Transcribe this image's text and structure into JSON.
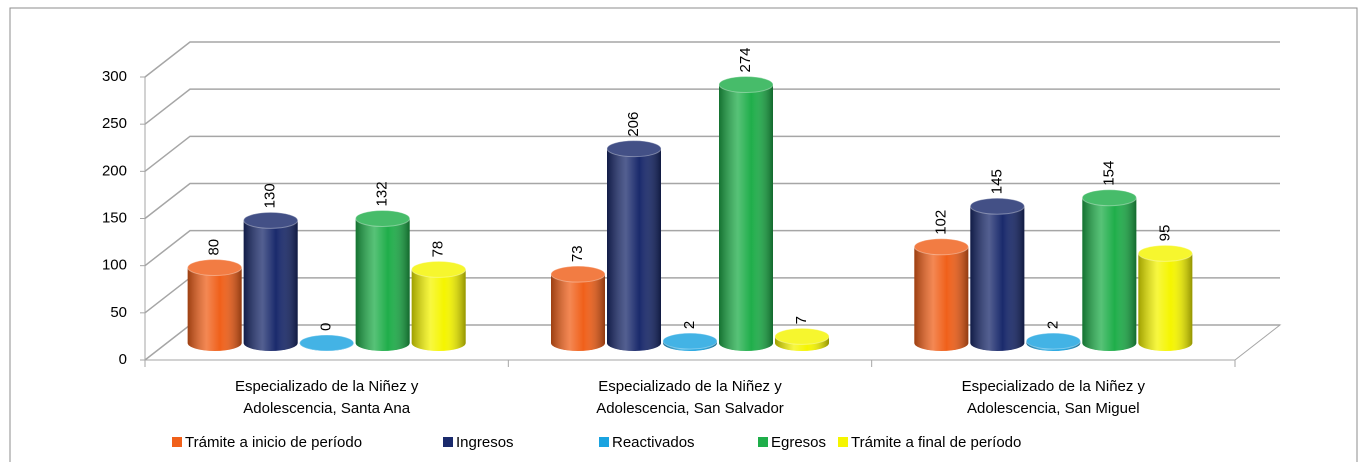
{
  "chart_data": {
    "type": "bar3d",
    "categories": [
      [
        "Especializado de la Niñez y",
        "Adolescencia, Santa Ana"
      ],
      [
        "Especializado de la Niñez y",
        "Adolescencia, San Salvador"
      ],
      [
        "Especializado de la Niñez y",
        "Adolescencia, San Miguel"
      ]
    ],
    "series": [
      {
        "name": "Trámite a inicio de período",
        "color": "#f0601a",
        "values": [
          80,
          73,
          102
        ]
      },
      {
        "name": "Ingresos",
        "color": "#1a2a6c",
        "values": [
          130,
          206,
          145
        ]
      },
      {
        "name": "Reactivados",
        "color": "#1aa3e0",
        "values": [
          0,
          2,
          2
        ]
      },
      {
        "name": "Egresos",
        "color": "#1fae4a",
        "values": [
          132,
          274,
          154
        ]
      },
      {
        "name": "Trámite a final de período",
        "color": "#f5f500",
        "values": [
          78,
          7,
          95
        ]
      }
    ],
    "ylim": [
      0,
      300
    ],
    "yticks": [
      0,
      50,
      100,
      150,
      200,
      250,
      300
    ],
    "grid": true,
    "legend": "bottom"
  }
}
